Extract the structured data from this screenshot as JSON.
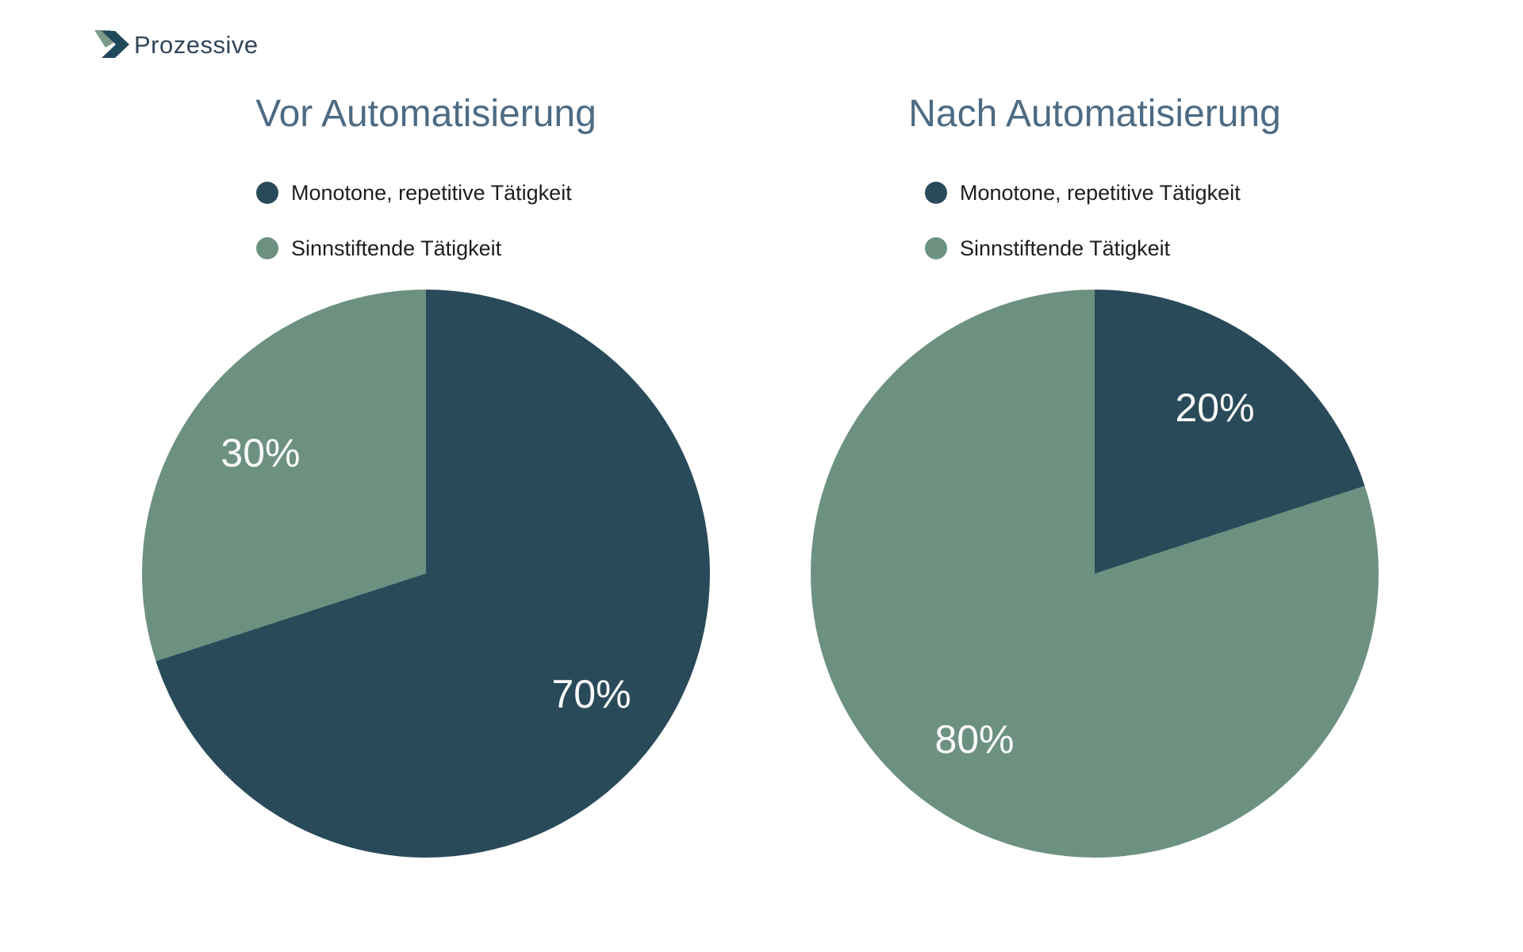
{
  "logo": {
    "text": "Prozessive",
    "icon": "chevron-right-icon"
  },
  "colors": {
    "background": "#ffffff",
    "slice_dark": "#294a59",
    "slice_green": "#6d9181",
    "title_text": "#4d6b83",
    "legend_text": "#1e1e1e",
    "slice_label_text": "#fafafa",
    "logo_text": "#32455a",
    "logo_chevron_dark": "#20495c",
    "logo_chevron_green": "#7e9a8b"
  },
  "chart_data": [
    {
      "type": "pie",
      "title": "Vor Automatisierung",
      "categories": [
        "Monotone, repetitive Tätigkeit",
        "Sinnstiftende Tätigkeit"
      ],
      "values": [
        70,
        30
      ],
      "labels": [
        "70%",
        "30%"
      ],
      "colors": [
        "#294a59",
        "#6d9181"
      ],
      "unit": "%",
      "start_angle_deg": 0,
      "direction": "clockwise",
      "legend_position": "top",
      "label_radius_fraction": 0.72
    },
    {
      "type": "pie",
      "title": "Nach Automatisierung",
      "categories": [
        "Monotone, repetitive Tätigkeit",
        "Sinnstiftende Tätigkeit"
      ],
      "values": [
        20,
        80
      ],
      "labels": [
        "20%",
        "80%"
      ],
      "colors": [
        "#294a59",
        "#6d9181"
      ],
      "unit": "%",
      "start_angle_deg": 0,
      "direction": "clockwise",
      "legend_position": "top",
      "label_radius_fraction": 0.72
    }
  ]
}
